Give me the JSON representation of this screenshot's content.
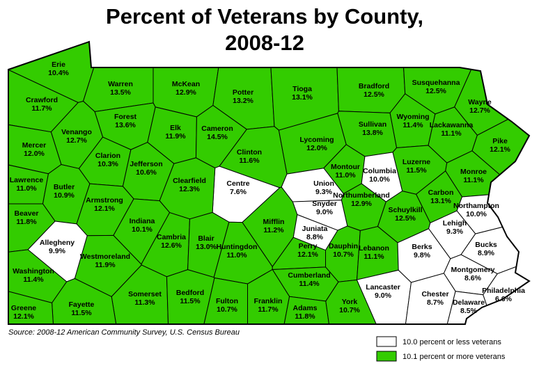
{
  "title": [
    "Percent of Veterans by County,",
    "2008-12"
  ],
  "source": "Source: 2008-12 American Community Survey, U.S. Census Bureau",
  "legend": [
    {
      "label": "10.0 percent or less veterans",
      "color": "#ffffff",
      "max": 10.0
    },
    {
      "label": "10.1 percent or more veterans",
      "color": "#33cc00",
      "min": 10.1
    }
  ],
  "counties": [
    {
      "name": "Erie",
      "value": 10.4,
      "label": "10.4%"
    },
    {
      "name": "Crawford",
      "value": 11.7,
      "label": "11.7%"
    },
    {
      "name": "Warren",
      "value": 13.5,
      "label": "13.5%"
    },
    {
      "name": "McKean",
      "value": 12.9,
      "label": "12.9%"
    },
    {
      "name": "Potter",
      "value": 13.2,
      "label": "13.2%"
    },
    {
      "name": "Tioga",
      "value": 13.1,
      "label": "13.1%"
    },
    {
      "name": "Bradford",
      "value": 12.5,
      "label": "12.5%"
    },
    {
      "name": "Susquehanna",
      "value": 12.5,
      "label": "12.5%"
    },
    {
      "name": "Wayne",
      "value": 12.7,
      "label": "12.7%"
    },
    {
      "name": "Wyoming",
      "value": 11.4,
      "label": "11.4%"
    },
    {
      "name": "Lackawanna",
      "value": 11.1,
      "label": "11.1%"
    },
    {
      "name": "Sullivan",
      "value": 13.8,
      "label": "13.8%"
    },
    {
      "name": "Forest",
      "value": 13.6,
      "label": "13.6%"
    },
    {
      "name": "Elk",
      "value": 11.9,
      "label": "11.9%"
    },
    {
      "name": "Cameron",
      "value": 14.5,
      "label": "14.5%"
    },
    {
      "name": "Venango",
      "value": 12.7,
      "label": "12.7%"
    },
    {
      "name": "Mercer",
      "value": 12.0,
      "label": "12.0%"
    },
    {
      "name": "Clarion",
      "value": 10.3,
      "label": "10.3%"
    },
    {
      "name": "Jefferson",
      "value": 10.6,
      "label": "10.6%"
    },
    {
      "name": "Clinton",
      "value": 11.6,
      "label": "11.6%"
    },
    {
      "name": "Lycoming",
      "value": 12.0,
      "label": "12.0%"
    },
    {
      "name": "Pike",
      "value": 12.1,
      "label": "12.1%"
    },
    {
      "name": "Luzerne",
      "value": 11.5,
      "label": "11.5%"
    },
    {
      "name": "Montour",
      "value": 11.0,
      "label": "11.0%"
    },
    {
      "name": "Columbia",
      "value": 10.0,
      "label": "10.0%"
    },
    {
      "name": "Union",
      "value": 9.3,
      "label": "9.3%"
    },
    {
      "name": "Centre",
      "value": 7.6,
      "label": "7.6%"
    },
    {
      "name": "Lawrence",
      "value": 11.0,
      "label": "11.0%"
    },
    {
      "name": "Butler",
      "value": 10.9,
      "label": "10.9%"
    },
    {
      "name": "Clearfield",
      "value": 12.3,
      "label": "12.3%"
    },
    {
      "name": "Monroe",
      "value": 11.1,
      "label": "11.1%"
    },
    {
      "name": "Northumberland",
      "value": 12.9,
      "label": "12.9%"
    },
    {
      "name": "Snyder",
      "value": 9.0,
      "label": "9.0%"
    },
    {
      "name": "Carbon",
      "value": 13.1,
      "label": "13.1%"
    },
    {
      "name": "Armstrong",
      "value": 12.1,
      "label": "12.1%"
    },
    {
      "name": "Schuylkill",
      "value": 12.5,
      "label": "12.5%"
    },
    {
      "name": "Northampton",
      "value": 10.0,
      "label": "10.0%"
    },
    {
      "name": "Beaver",
      "value": 11.8,
      "label": "11.8%"
    },
    {
      "name": "Indiana",
      "value": 10.1,
      "label": "10.1%"
    },
    {
      "name": "Lehigh",
      "value": 9.3,
      "label": "9.3%"
    },
    {
      "name": "Mifflin",
      "value": 11.2,
      "label": "11.2%"
    },
    {
      "name": "Juniata",
      "value": 8.8,
      "label": "8.8%"
    },
    {
      "name": "Allegheny",
      "value": 9.9,
      "label": "9.9%"
    },
    {
      "name": "Cambria",
      "value": 12.6,
      "label": "12.6%"
    },
    {
      "name": "Blair",
      "value": 13.0,
      "label": "13.0%"
    },
    {
      "name": "Huntingdon",
      "value": 11.0,
      "label": "11.0%"
    },
    {
      "name": "Perry",
      "value": 12.1,
      "label": "12.1%"
    },
    {
      "name": "Dauphin",
      "value": 10.7,
      "label": "10.7%"
    },
    {
      "name": "Lebanon",
      "value": 11.1,
      "label": "11.1%"
    },
    {
      "name": "Berks",
      "value": 9.8,
      "label": "9.8%"
    },
    {
      "name": "Bucks",
      "value": 8.9,
      "label": "8.9%"
    },
    {
      "name": "Westmoreland",
      "value": 11.9,
      "label": "11.9%"
    },
    {
      "name": "Washington",
      "value": 11.4,
      "label": "11.4%"
    },
    {
      "name": "Cumberland",
      "value": 11.4,
      "label": "11.4%"
    },
    {
      "name": "Montgomery",
      "value": 8.6,
      "label": "8.6%"
    },
    {
      "name": "Lancaster",
      "value": 9.0,
      "label": "9.0%"
    },
    {
      "name": "Somerset",
      "value": 11.3,
      "label": "11.3%"
    },
    {
      "name": "Bedford",
      "value": 11.5,
      "label": "11.5%"
    },
    {
      "name": "Fulton",
      "value": 10.7,
      "label": "10.7%"
    },
    {
      "name": "Franklin",
      "value": 11.7,
      "label": "11.7%"
    },
    {
      "name": "Adams",
      "value": 11.8,
      "label": "11.8%"
    },
    {
      "name": "York",
      "value": 10.7,
      "label": "10.7%"
    },
    {
      "name": "Chester",
      "value": 8.7,
      "label": "8.7%"
    },
    {
      "name": "Philadelphia",
      "value": 6.6,
      "label": "6.6%"
    },
    {
      "name": "Delaware",
      "value": 8.5,
      "label": "8.5%"
    },
    {
      "name": "Fayette",
      "value": 11.5,
      "label": "11.5%"
    },
    {
      "name": "Greene",
      "value": 12.1,
      "label": "12.1%"
    }
  ]
}
